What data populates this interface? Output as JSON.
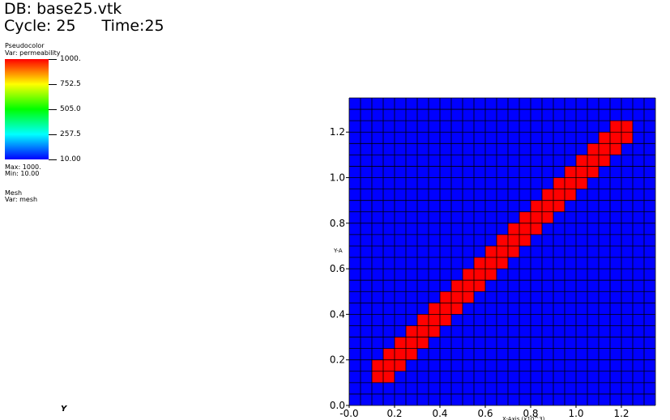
{
  "header": {
    "db": "DB: base25.vtk",
    "cycle": "Cycle: 25",
    "time": "Time:25"
  },
  "legend": {
    "plot_type": "Pseudocolor",
    "var": "Var: permeability",
    "ticks": [
      "1000.",
      "752.5",
      "505.0",
      "257.5",
      "10.00"
    ],
    "max": "Max:  1000.",
    "min": "Min:  10.00",
    "colors": [
      "#ff0000",
      "#ffff00",
      "#00ff00",
      "#00ffff",
      "#0000ff"
    ]
  },
  "mesh_legend": {
    "plot_type": "Mesh",
    "var": "Var: mesh"
  },
  "triad": {
    "y": "Y"
  },
  "chart_data": {
    "type": "heatmap",
    "title": "",
    "xlabel": "X-Axis (x10^3)",
    "ylabel": "Y-A",
    "xlim": [
      0.0,
      1.35
    ],
    "ylim": [
      0.0,
      1.35
    ],
    "x_ticks": [
      "-0.0",
      "0.2",
      "0.4",
      "0.6",
      "0.8",
      "1.0",
      "1.2"
    ],
    "x_tick_values": [
      0.0,
      0.2,
      0.4,
      0.6,
      0.8,
      1.0,
      1.2
    ],
    "y_ticks": [
      "0.0",
      "0.2",
      "0.4",
      "0.6",
      "0.8",
      "1.0",
      "1.2"
    ],
    "y_tick_values": [
      0.0,
      0.2,
      0.4,
      0.6,
      0.8,
      1.0,
      1.2
    ],
    "grid_cells": 27,
    "cell_size": 0.05,
    "background_value": 10.0,
    "background_color": "#0000ff",
    "high_value": 1000.0,
    "high_color": "#ff0000",
    "grid_color": "#000000",
    "high_cells": [
      [
        2,
        2
      ],
      [
        3,
        2
      ],
      [
        2,
        3
      ],
      [
        3,
        3
      ],
      [
        4,
        3
      ],
      [
        3,
        4
      ],
      [
        4,
        4
      ],
      [
        5,
        4
      ],
      [
        4,
        5
      ],
      [
        5,
        5
      ],
      [
        6,
        5
      ],
      [
        5,
        6
      ],
      [
        6,
        6
      ],
      [
        7,
        6
      ],
      [
        6,
        7
      ],
      [
        7,
        7
      ],
      [
        8,
        7
      ],
      [
        7,
        8
      ],
      [
        8,
        8
      ],
      [
        9,
        8
      ],
      [
        8,
        9
      ],
      [
        9,
        9
      ],
      [
        10,
        9
      ],
      [
        9,
        10
      ],
      [
        10,
        10
      ],
      [
        11,
        10
      ],
      [
        10,
        11
      ],
      [
        11,
        11
      ],
      [
        12,
        11
      ],
      [
        11,
        12
      ],
      [
        12,
        12
      ],
      [
        13,
        12
      ],
      [
        12,
        13
      ],
      [
        13,
        13
      ],
      [
        14,
        13
      ],
      [
        13,
        14
      ],
      [
        14,
        14
      ],
      [
        15,
        14
      ],
      [
        14,
        15
      ],
      [
        15,
        15
      ],
      [
        16,
        15
      ],
      [
        15,
        16
      ],
      [
        16,
        16
      ],
      [
        17,
        16
      ],
      [
        16,
        17
      ],
      [
        17,
        17
      ],
      [
        18,
        17
      ],
      [
        17,
        18
      ],
      [
        18,
        18
      ],
      [
        19,
        18
      ],
      [
        18,
        19
      ],
      [
        19,
        19
      ],
      [
        20,
        19
      ],
      [
        19,
        20
      ],
      [
        20,
        20
      ],
      [
        21,
        20
      ],
      [
        20,
        21
      ],
      [
        21,
        21
      ],
      [
        22,
        21
      ],
      [
        21,
        22
      ],
      [
        22,
        22
      ],
      [
        23,
        22
      ],
      [
        22,
        23
      ],
      [
        23,
        23
      ],
      [
        24,
        23
      ],
      [
        23,
        24
      ],
      [
        24,
        24
      ]
    ]
  }
}
